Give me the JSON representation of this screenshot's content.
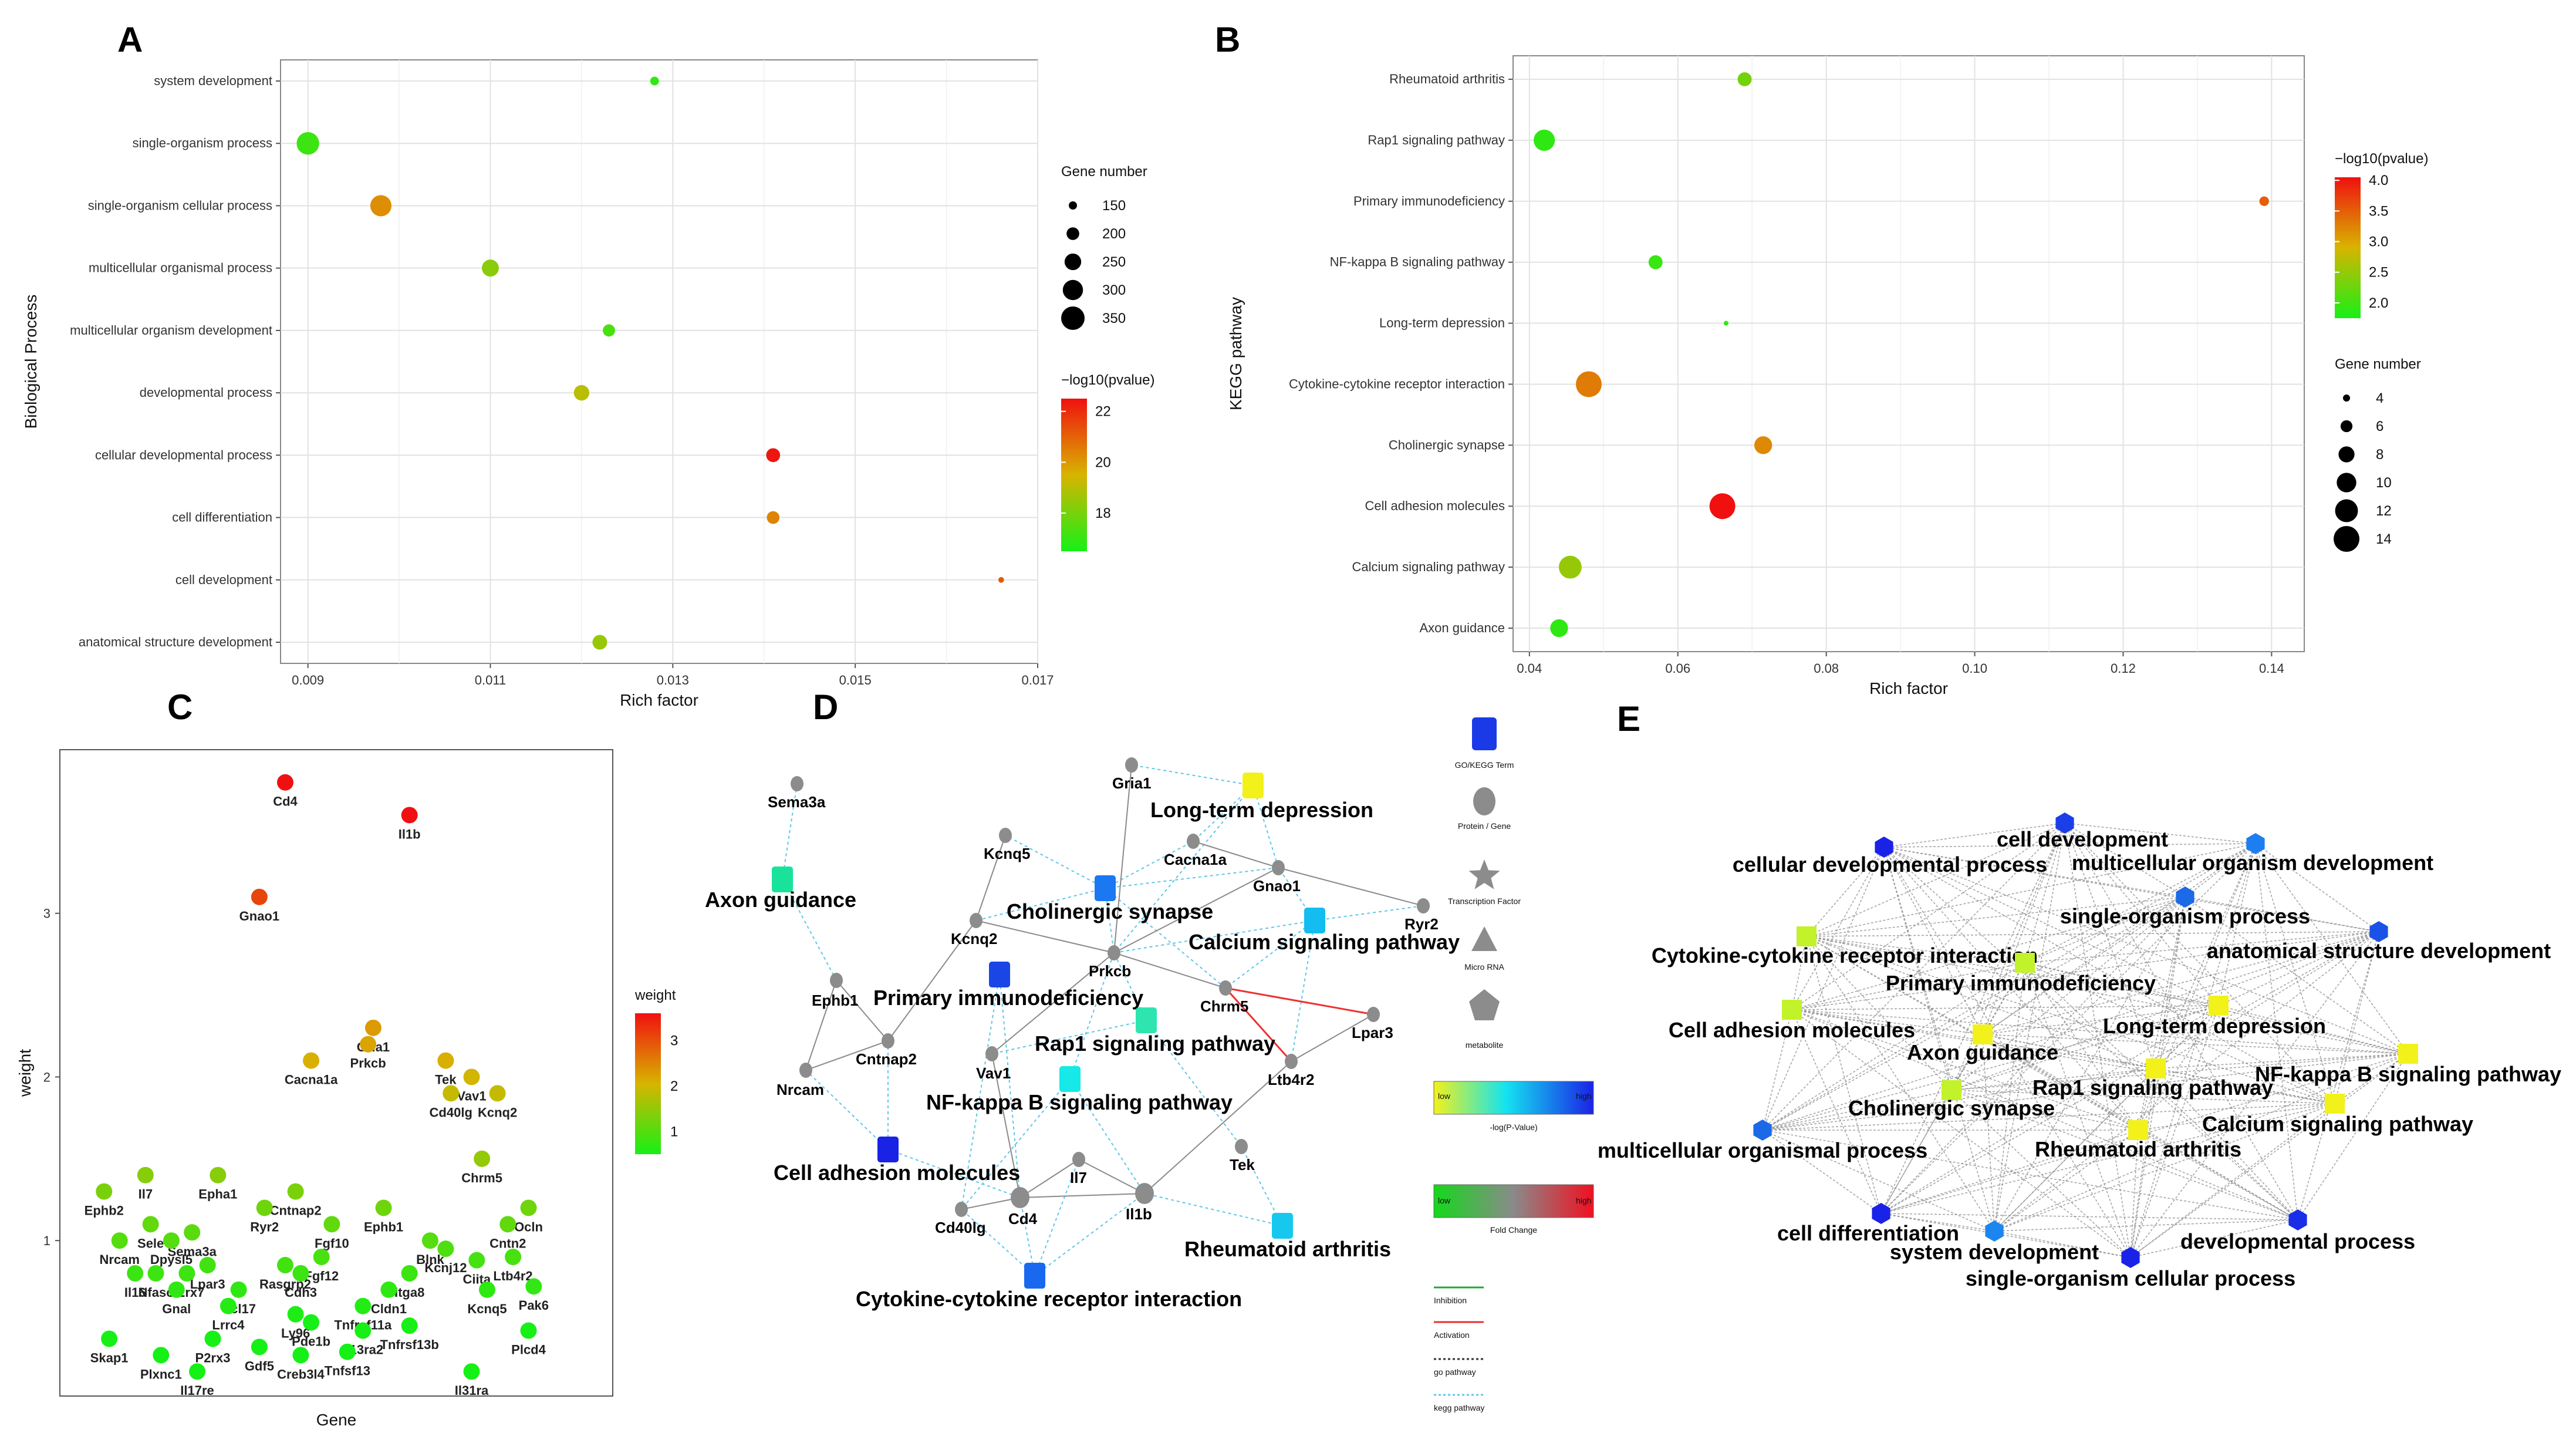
{
  "panels": {
    "A": "A",
    "B": "B",
    "C": "C",
    "D": "D",
    "E": "E"
  },
  "chart_data": [
    {
      "id": "A",
      "type": "scatter",
      "xlabel": "Rich factor",
      "ylabel": "Biological Process",
      "xlim": [
        0.0087,
        0.017
      ],
      "xticks": [
        0.009,
        0.011,
        0.013,
        0.015,
        0.017
      ],
      "xtick_labels": [
        "0.009",
        "0.011",
        "0.013",
        "0.015",
        "0.017"
      ],
      "categories": [
        "system development",
        "single-organism process",
        "single-organism cellular process",
        "multicellular organismal process",
        "multicellular organism development",
        "developmental process",
        "cellular developmental process",
        "cell differentiation",
        "cell development",
        "anatomical structure development"
      ],
      "x": [
        0.0128,
        0.009,
        0.0098,
        0.011,
        0.0123,
        0.012,
        0.0141,
        0.0141,
        0.0166,
        0.0122
      ],
      "size": [
        155,
        335,
        315,
        255,
        195,
        235,
        215,
        200,
        125,
        225
      ],
      "color_value": [
        16.9,
        17.1,
        20.2,
        18.3,
        17.3,
        19.0,
        22.4,
        20.4,
        21.2,
        18.5
      ],
      "size_legend": {
        "title": "Gene number",
        "values": [
          150,
          200,
          250,
          300,
          350
        ],
        "labels": [
          "150",
          "200",
          "250",
          "300",
          "350"
        ]
      },
      "color_legend": {
        "title": "−log10(pvalue)",
        "range": [
          16.5,
          22.5
        ],
        "ticks": [
          18,
          20,
          22
        ],
        "tick_labels": [
          "18",
          "20",
          "22"
        ],
        "low": "#16f016",
        "mid": "#d8b400",
        "high": "#f01010"
      }
    },
    {
      "id": "B",
      "type": "scatter",
      "xlabel": "Rich factor",
      "ylabel": "KEGG pathway",
      "xlim": [
        0.0378,
        0.1444
      ],
      "xticks": [
        0.04,
        0.06,
        0.08,
        0.1,
        0.12,
        0.14
      ],
      "xtick_labels": [
        "0.04",
        "0.06",
        "0.08",
        "0.10",
        "0.12",
        "0.14"
      ],
      "categories": [
        "Rheumatoid arthritis",
        "Rap1 signaling pathway",
        "Primary immunodeficiency",
        "NF-kappa B signaling pathway",
        "Long-term depression",
        "Cytokine-cytokine receptor interaction",
        "Cholinergic synapse",
        "Cell adhesion molecules",
        "Calcium signaling pathway",
        "Axon guidance"
      ],
      "x": [
        0.069,
        0.042,
        0.139,
        0.057,
        0.0665,
        0.048,
        0.0715,
        0.066,
        0.0455,
        0.044
      ],
      "size": [
        7,
        11,
        5,
        7,
        3,
        14,
        9,
        14,
        12,
        9
      ],
      "color_value": [
        2.3,
        1.9,
        3.5,
        1.95,
        1.9,
        3.3,
        3.2,
        4.1,
        2.5,
        1.9
      ],
      "size_legend": {
        "title": "Gene number",
        "values": [
          4,
          6,
          8,
          10,
          12,
          14
        ],
        "labels": [
          "4",
          "6",
          "8",
          "10",
          "12",
          "14"
        ]
      },
      "color_legend": {
        "title": "−log10(pvalue)",
        "range": [
          1.75,
          4.05
        ],
        "ticks": [
          2.0,
          2.5,
          3.0,
          3.5,
          4.0
        ],
        "tick_labels": [
          "2.0",
          "2.5",
          "3.0",
          "3.5",
          "4.0"
        ],
        "low": "#16f016",
        "mid": "#d8b400",
        "high": "#f01010"
      }
    },
    {
      "id": "C",
      "type": "scatter",
      "xlabel": "Gene",
      "ylabel": "weight",
      "ylim": [
        0.05,
        4.0
      ],
      "yticks": [
        1,
        2,
        3
      ],
      "ytick_labels": [
        "1",
        "2",
        "3"
      ],
      "xrange": [
        0,
        100
      ],
      "color_legend": {
        "title": "weight",
        "range": [
          0.5,
          3.6
        ],
        "ticks": [
          1,
          2,
          3
        ],
        "tick_labels": [
          "1",
          "2",
          "3"
        ],
        "low": "#16f016",
        "mid": "#d8b400",
        "high": "#f01010"
      },
      "points": [
        {
          "gene": "Cd4",
          "x": 39,
          "w": 3.8
        },
        {
          "gene": "Il1b",
          "x": 63,
          "w": 3.6
        },
        {
          "gene": "Gnao1",
          "x": 34,
          "w": 3.1
        },
        {
          "gene": "Gria1",
          "x": 56,
          "w": 2.3
        },
        {
          "gene": "Prkcb",
          "x": 55,
          "w": 2.2
        },
        {
          "gene": "Cacna1a",
          "x": 44,
          "w": 2.1
        },
        {
          "gene": "Tek",
          "x": 70,
          "w": 2.1
        },
        {
          "gene": "Vav1",
          "x": 75,
          "w": 2.0
        },
        {
          "gene": "Cd40lg",
          "x": 71,
          "w": 1.9
        },
        {
          "gene": "Kcnq2",
          "x": 80,
          "w": 1.9
        },
        {
          "gene": "Chrm5",
          "x": 77,
          "w": 1.5
        },
        {
          "gene": "Il7",
          "x": 12,
          "w": 1.4
        },
        {
          "gene": "Epha1",
          "x": 26,
          "w": 1.4
        },
        {
          "gene": "Ephb2",
          "x": 4,
          "w": 1.3
        },
        {
          "gene": "Cntnap2",
          "x": 41,
          "w": 1.3
        },
        {
          "gene": "Ryr2",
          "x": 35,
          "w": 1.2
        },
        {
          "gene": "Ephb1",
          "x": 58,
          "w": 1.2
        },
        {
          "gene": "Ocln",
          "x": 86,
          "w": 1.2
        },
        {
          "gene": "Sele",
          "x": 13,
          "w": 1.1
        },
        {
          "gene": "Sema3a",
          "x": 21,
          "w": 1.05
        },
        {
          "gene": "Nrcam",
          "x": 7,
          "w": 1.0
        },
        {
          "gene": "Blnk",
          "x": 67,
          "w": 1.0
        },
        {
          "gene": "Cntn2",
          "x": 82,
          "w": 1.1
        },
        {
          "gene": "Fgf10",
          "x": 48,
          "w": 1.1
        },
        {
          "gene": "Dpysl5",
          "x": 17,
          "w": 1.0
        },
        {
          "gene": "Kcnj12",
          "x": 70,
          "w": 0.95
        },
        {
          "gene": "Fgf12",
          "x": 46,
          "w": 0.9
        },
        {
          "gene": "Rasgrp2",
          "x": 39,
          "w": 0.85
        },
        {
          "gene": "Ltb4r2",
          "x": 83,
          "w": 0.9
        },
        {
          "gene": "Lpar3",
          "x": 24,
          "w": 0.85
        },
        {
          "gene": "Ciita",
          "x": 76,
          "w": 0.88
        },
        {
          "gene": "Il16",
          "x": 10,
          "w": 0.8
        },
        {
          "gene": "Nfasc",
          "x": 14,
          "w": 0.8
        },
        {
          "gene": "P2rx7",
          "x": 20,
          "w": 0.8
        },
        {
          "gene": "Ccl17",
          "x": 30,
          "w": 0.7
        },
        {
          "gene": "Cdh3",
          "x": 42,
          "w": 0.8
        },
        {
          "gene": "Itga8",
          "x": 63,
          "w": 0.8
        },
        {
          "gene": "Gnal",
          "x": 18,
          "w": 0.7
        },
        {
          "gene": "Cldn1",
          "x": 59,
          "w": 0.7
        },
        {
          "gene": "Kcnq5",
          "x": 78,
          "w": 0.7
        },
        {
          "gene": "Pak6",
          "x": 87,
          "w": 0.72
        },
        {
          "gene": "Lrrc4",
          "x": 28,
          "w": 0.6
        },
        {
          "gene": "Ly96",
          "x": 41,
          "w": 0.55
        },
        {
          "gene": "Tnfrsf11a",
          "x": 54,
          "w": 0.6
        },
        {
          "gene": "Pde1b",
          "x": 44,
          "w": 0.5
        },
        {
          "gene": "Il13ra2",
          "x": 54,
          "w": 0.45
        },
        {
          "gene": "Tnfrsf13b",
          "x": 63,
          "w": 0.48
        },
        {
          "gene": "Plcd4",
          "x": 86,
          "w": 0.45
        },
        {
          "gene": "Skap1",
          "x": 5,
          "w": 0.4
        },
        {
          "gene": "Plxnc1",
          "x": 15,
          "w": 0.3
        },
        {
          "gene": "P2rx3",
          "x": 25,
          "w": 0.4
        },
        {
          "gene": "Gdf5",
          "x": 34,
          "w": 0.35
        },
        {
          "gene": "Creb3l4",
          "x": 42,
          "w": 0.3
        },
        {
          "gene": "Tnfsf13",
          "x": 51,
          "w": 0.32
        },
        {
          "gene": "Il17re",
          "x": 22,
          "w": 0.2
        },
        {
          "gene": "Il31ra",
          "x": 75,
          "w": 0.2
        }
      ]
    }
  ],
  "network_d": {
    "legend": {
      "shape_labels": [
        "GO/KEGG Term",
        "Protein / Gene",
        "Transcription Factor",
        "Micro RNA",
        "metabolite"
      ],
      "pvalue_low": "low",
      "pvalue_high": "high",
      "pvalue_title": "-log(P-Value)",
      "fold_low": "low",
      "fold_high": "high",
      "fold_title": "Fold Change",
      "line_labels": [
        "Inhibition",
        "Activation",
        "go pathway",
        "kegg pathway"
      ]
    },
    "terms": [
      {
        "id": "axon",
        "label": "Axon guidance",
        "color": "#19e39a"
      },
      {
        "id": "ltd",
        "label": "Long-term depression",
        "color": "#f2f21a"
      },
      {
        "id": "chol",
        "label": "Cholinergic synapse",
        "color": "#1b78f2"
      },
      {
        "id": "calc",
        "label": "Calcium signaling pathway",
        "color": "#14bdf0"
      },
      {
        "id": "pid",
        "label": "Primary immunodeficiency",
        "color": "#1a46e6"
      },
      {
        "id": "rap1",
        "label": "Rap1 signaling pathway",
        "color": "#2ee5b0"
      },
      {
        "id": "nfkb",
        "label": "NF-kappa B signaling pathway",
        "color": "#17e8e8"
      },
      {
        "id": "cam",
        "label": "Cell adhesion molecules",
        "color": "#1a22e6"
      },
      {
        "id": "ra",
        "label": "Rheumatoid arthritis",
        "color": "#17c8ee"
      },
      {
        "id": "cyto",
        "label": "Cytokine-cytokine receptor interaction",
        "color": "#1a68f0"
      }
    ],
    "genes": [
      {
        "id": "sema3a",
        "label": "Sema3a"
      },
      {
        "id": "gria1",
        "label": "Gria1"
      },
      {
        "id": "kcnq5",
        "label": "Kcnq5"
      },
      {
        "id": "cacna1a",
        "label": "Cacna1a"
      },
      {
        "id": "gnao1",
        "label": "Gnao1"
      },
      {
        "id": "kcnq2",
        "label": "Kcnq2"
      },
      {
        "id": "prkcb",
        "label": "Prkcb"
      },
      {
        "id": "ryr2",
        "label": "Ryr2"
      },
      {
        "id": "ephb1",
        "label": "Ephb1"
      },
      {
        "id": "chrm5",
        "label": "Chrm5"
      },
      {
        "id": "lpar3",
        "label": "Lpar3"
      },
      {
        "id": "cntnap2",
        "label": "Cntnap2"
      },
      {
        "id": "vav1",
        "label": "Vav1"
      },
      {
        "id": "nrcam",
        "label": "Nrcam"
      },
      {
        "id": "ltb4r2",
        "label": "Ltb4r2"
      },
      {
        "id": "tek",
        "label": "Tek"
      },
      {
        "id": "il7",
        "label": "Il7"
      },
      {
        "id": "cd40lg",
        "label": "Cd40lg"
      },
      {
        "id": "cd4",
        "label": "Cd4"
      },
      {
        "id": "il1b",
        "label": "Il1b"
      }
    ]
  },
  "network_e": {
    "nodes": [
      {
        "id": "cdev",
        "label": "cell development",
        "color": "#1a3fe8",
        "kind": "hex"
      },
      {
        "id": "cdp",
        "label": "cellular developmental process",
        "color": "#1a22e8",
        "kind": "hex"
      },
      {
        "id": "mod",
        "label": "multicellular organism development",
        "color": "#1c7ef0",
        "kind": "hex"
      },
      {
        "id": "sop",
        "label": "single-organism process",
        "color": "#1c6ae8",
        "kind": "hex"
      },
      {
        "id": "ccri",
        "label": "Cytokine-cytokine receptor interaction",
        "color": "#c2f22a",
        "kind": "sq"
      },
      {
        "id": "asd",
        "label": "anatomical structure development",
        "color": "#1a52e8",
        "kind": "hex"
      },
      {
        "id": "pid",
        "label": "Primary immunodeficiency",
        "color": "#c2f22a",
        "kind": "sq"
      },
      {
        "id": "cam",
        "label": "Cell adhesion molecules",
        "color": "#c2f22a",
        "kind": "sq"
      },
      {
        "id": "ltd",
        "label": "Long-term depression",
        "color": "#f2f21a",
        "kind": "sq"
      },
      {
        "id": "axon",
        "label": "Axon guidance",
        "color": "#f2f21a",
        "kind": "sq"
      },
      {
        "id": "nfkb",
        "label": "NF-kappa B signaling pathway",
        "color": "#f2f21a",
        "kind": "sq"
      },
      {
        "id": "rap1",
        "label": "Rap1 signaling pathway",
        "color": "#f2f21a",
        "kind": "sq"
      },
      {
        "id": "chol",
        "label": "Cholinergic synapse",
        "color": "#c2f22a",
        "kind": "sq"
      },
      {
        "id": "calc",
        "label": "Calcium signaling pathway",
        "color": "#f2f21a",
        "kind": "sq"
      },
      {
        "id": "mop",
        "label": "multicellular organismal process",
        "color": "#1a6ae8",
        "kind": "hex"
      },
      {
        "id": "ra",
        "label": "Rheumatoid arthritis",
        "color": "#f2f21a",
        "kind": "sq"
      },
      {
        "id": "cdiff",
        "label": "cell differentiation",
        "color": "#1a22e8",
        "kind": "hex"
      },
      {
        "id": "sysd",
        "label": "system development",
        "color": "#1c86f0",
        "kind": "hex"
      },
      {
        "id": "devp",
        "label": "developmental process",
        "color": "#1a2ee8",
        "kind": "hex"
      },
      {
        "id": "socp",
        "label": "single-organism cellular process",
        "color": "#1a22e8",
        "kind": "hex"
      }
    ]
  }
}
